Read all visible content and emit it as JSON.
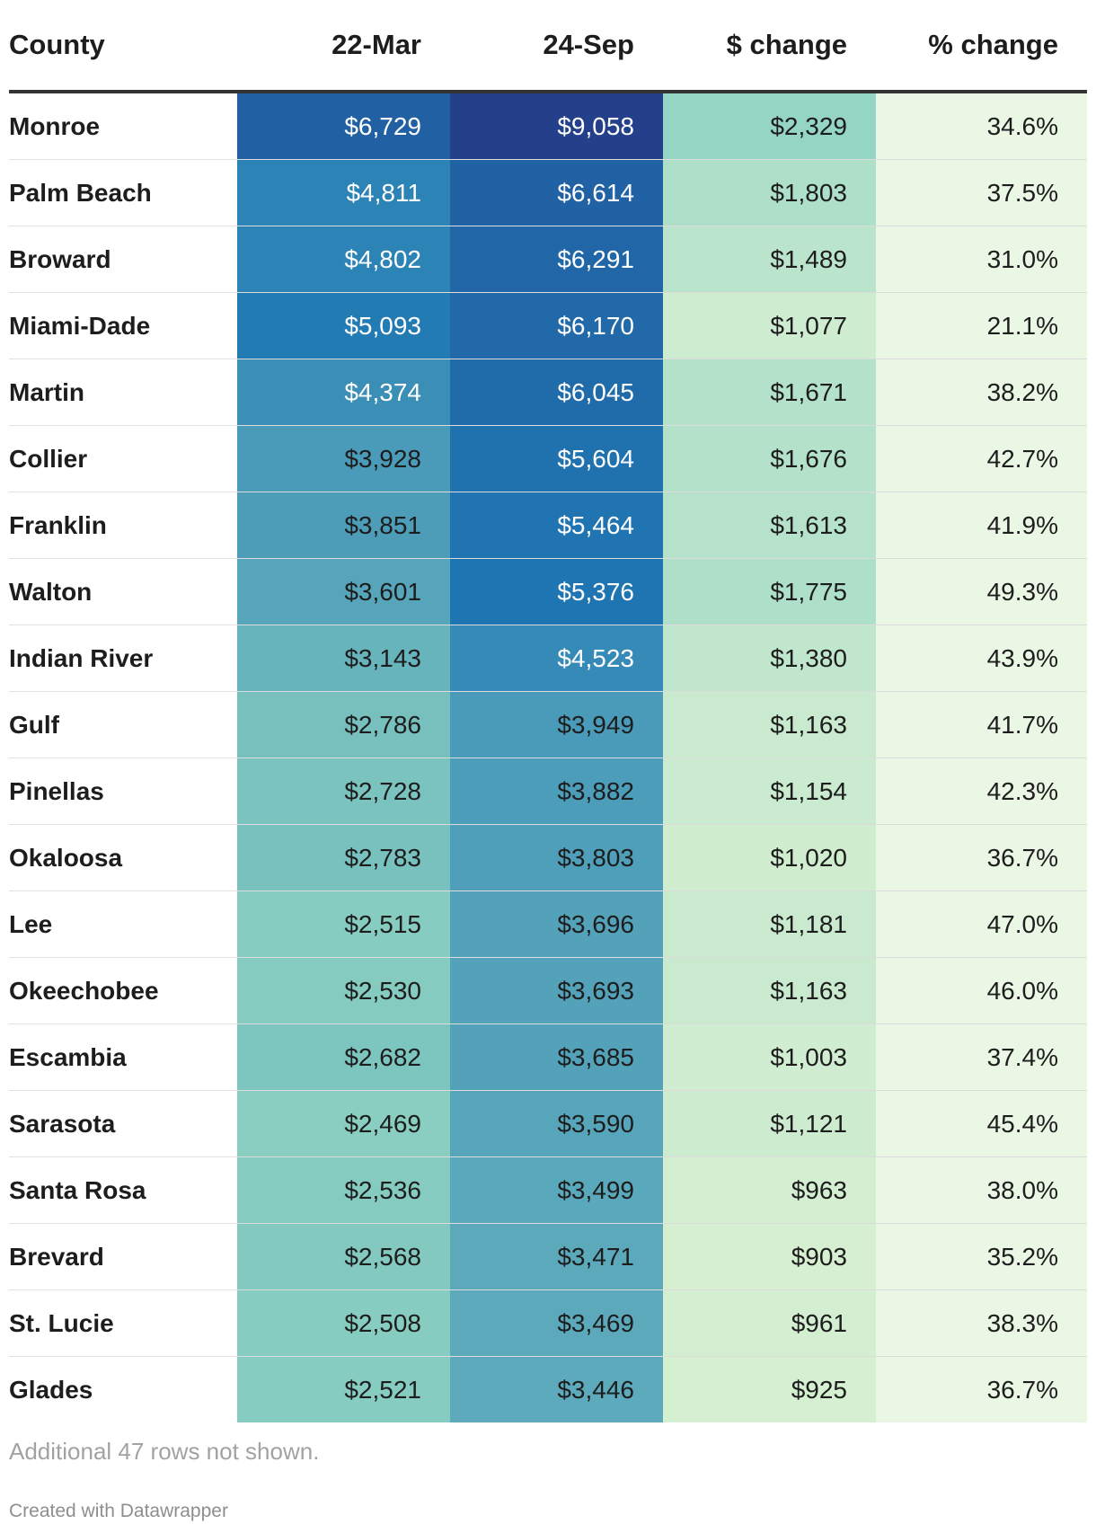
{
  "chart_data": {
    "type": "table",
    "columns": [
      "County",
      "22-Mar",
      "24-Sep",
      "$ change",
      "% change"
    ],
    "rows": [
      [
        "Monroe",
        "$6,729",
        "$9,058",
        "$2,329",
        "34.6%"
      ],
      [
        "Palm Beach",
        "$4,811",
        "$6,614",
        "$1,803",
        "37.5%"
      ],
      [
        "Broward",
        "$4,802",
        "$6,291",
        "$1,489",
        "31.0%"
      ],
      [
        "Miami-Dade",
        "$5,093",
        "$6,170",
        "$1,077",
        "21.1%"
      ],
      [
        "Martin",
        "$4,374",
        "$6,045",
        "$1,671",
        "38.2%"
      ],
      [
        "Collier",
        "$3,928",
        "$5,604",
        "$1,676",
        "42.7%"
      ],
      [
        "Franklin",
        "$3,851",
        "$5,464",
        "$1,613",
        "41.9%"
      ],
      [
        "Walton",
        "$3,601",
        "$5,376",
        "$1,775",
        "49.3%"
      ],
      [
        "Indian River",
        "$3,143",
        "$4,523",
        "$1,380",
        "43.9%"
      ],
      [
        "Gulf",
        "$2,786",
        "$3,949",
        "$1,163",
        "41.7%"
      ],
      [
        "Pinellas",
        "$2,728",
        "$3,882",
        "$1,154",
        "42.3%"
      ],
      [
        "Okaloosa",
        "$2,783",
        "$3,803",
        "$1,020",
        "36.7%"
      ],
      [
        "Lee",
        "$2,515",
        "$3,696",
        "$1,181",
        "47.0%"
      ],
      [
        "Okeechobee",
        "$2,530",
        "$3,693",
        "$1,163",
        "46.0%"
      ],
      [
        "Escambia",
        "$2,682",
        "$3,685",
        "$1,003",
        "37.4%"
      ],
      [
        "Sarasota",
        "$2,469",
        "$3,590",
        "$1,121",
        "45.4%"
      ],
      [
        "Santa Rosa",
        "$2,536",
        "$3,499",
        "$963",
        "38.0%"
      ],
      [
        "Brevard",
        "$2,568",
        "$3,471",
        "$903",
        "35.2%"
      ],
      [
        "St. Lucie",
        "$2,508",
        "$3,469",
        "$961",
        "38.3%"
      ],
      [
        "Glades",
        "$2,521",
        "$3,446",
        "$925",
        "36.7%"
      ]
    ],
    "color_scales": {
      "price": [
        "#8fd3c1",
        "#1f78b4",
        "#253f8a"
      ],
      "dollar_change": [
        "#d8f0d2",
        "#92d4c3"
      ],
      "pct_change": [
        "#eaf7e4"
      ]
    }
  },
  "footer": {
    "note": "Additional 47 rows not shown.",
    "credit": "Created with Datawrapper"
  }
}
